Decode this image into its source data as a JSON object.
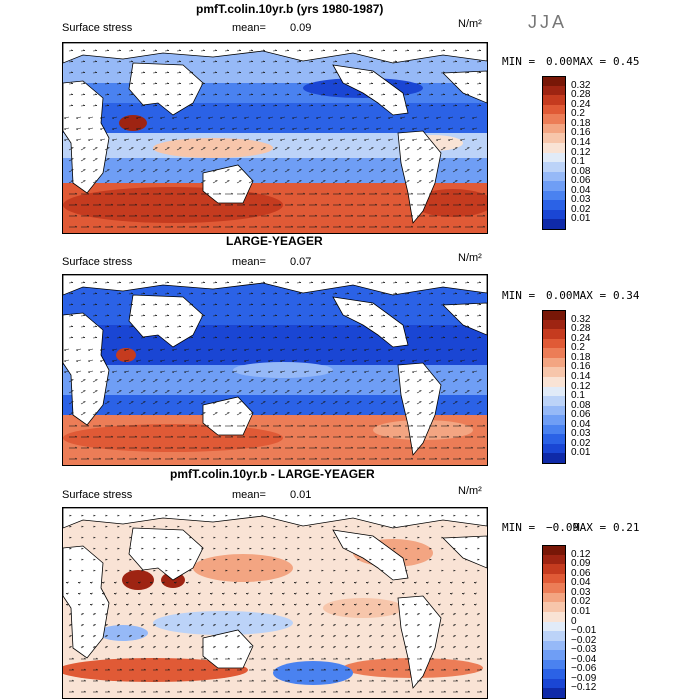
{
  "header": {
    "title": "pmfT.colin.10yr.b (yrs 1980-1987)",
    "season": "JJA"
  },
  "colors": {
    "land": "#ffffff",
    "coast": "#000000",
    "arrow": "#1a1a1a",
    "panel1_scale": [
      "#0a1a7a",
      "#0f2aa8",
      "#1a46d4",
      "#2b62e6",
      "#4a82f0",
      "#6f9ef5",
      "#96b9f7",
      "#bcd3f8",
      "#e1ebf8",
      "#f9e3d5",
      "#f7c6ab",
      "#f3a582",
      "#ec7d57",
      "#e05a36",
      "#c53b1f",
      "#9e2412",
      "#781707"
    ],
    "panel3_scale": [
      "#0a1a7a",
      "#0f2aa8",
      "#1a46d4",
      "#2b62e6",
      "#4a82f0",
      "#6f9ef5",
      "#96b9f7",
      "#bcd3f8",
      "#e1ebf8",
      "#f9e3d5",
      "#f7c6ab",
      "#f3a582",
      "#ec7d57",
      "#e05a36",
      "#c53b1f",
      "#9e2412",
      "#781707"
    ]
  },
  "panels": [
    {
      "subtitle": "",
      "variable": "Surface stress",
      "mean_label": "mean=",
      "mean_value": "0.09",
      "units": "N/m²",
      "min_label": "MIN =",
      "min_value": "0.00",
      "max_label": "MAX =",
      "max_value": "0.45",
      "colorbar_ticks": [
        "0.32",
        "0.28",
        "0.24",
        "0.2",
        "0.18",
        "0.16",
        "0.14",
        "0.12",
        "0.1",
        "0.08",
        "0.06",
        "0.04",
        "0.03",
        "0.02",
        "0.01"
      ]
    },
    {
      "subtitle": "LARGE-YEAGER",
      "variable": "Surface stress",
      "mean_label": "mean=",
      "mean_value": "0.07",
      "units": "N/m²",
      "min_label": "MIN =",
      "min_value": "0.00",
      "max_label": "MAX =",
      "max_value": "0.34",
      "colorbar_ticks": [
        "0.32",
        "0.28",
        "0.24",
        "0.2",
        "0.18",
        "0.16",
        "0.14",
        "0.12",
        "0.1",
        "0.08",
        "0.06",
        "0.04",
        "0.03",
        "0.02",
        "0.01"
      ]
    },
    {
      "subtitle": "pmfT.colin.10yr.b - LARGE-YEAGER",
      "variable": "Surface stress",
      "mean_label": "mean=",
      "mean_value": "0.01",
      "units": "N/m²",
      "min_label": "MIN =",
      "min_value": "−0.09",
      "max_label": "MAX =",
      "max_value": "0.21",
      "colorbar_ticks": [
        "0.12",
        "0.09",
        "0.06",
        "0.04",
        "0.03",
        "0.02",
        "0.01",
        "0",
        "−0.01",
        "−0.02",
        "−0.03",
        "−0.04",
        "−0.06",
        "−0.09",
        "−0.12"
      ]
    }
  ]
}
